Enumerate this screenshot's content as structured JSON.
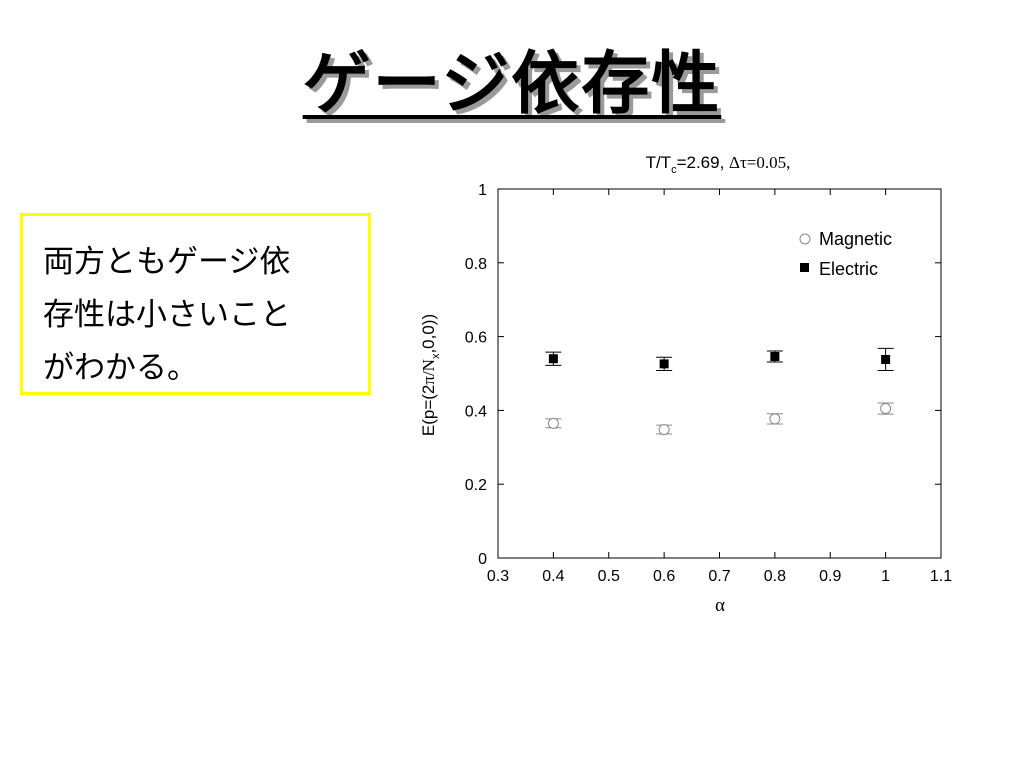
{
  "slide": {
    "title": "ゲージ依存性",
    "note_lines": [
      "両方ともゲージ依",
      "存性は小さいこと",
      "がわかる。"
    ]
  },
  "chart_data": {
    "type": "scatter",
    "title": {
      "main": "T/T",
      "sub": "c",
      "rest": "=2.69, ",
      "symbol": "Δτ=0.05,"
    },
    "xlabel": "α",
    "ylabel": {
      "pre": "E(p=(2",
      "pi": "π",
      "slash": "/N",
      "sub": "x",
      "post": ",0,0))"
    },
    "xlim": [
      0.3,
      1.1
    ],
    "ylim": [
      0,
      1
    ],
    "x_ticks": [
      "0.3",
      "0.4",
      "0.5",
      "0.6",
      "0.7",
      "0.8",
      "0.9",
      "1",
      "1.1"
    ],
    "y_ticks": [
      "0",
      "0.2",
      "0.4",
      "0.6",
      "0.8",
      "1"
    ],
    "legend_position": "top-right",
    "series": [
      {
        "name": "Magnetic",
        "marker": "open-circle",
        "color": "#888888",
        "x": [
          0.4,
          0.6,
          0.8,
          1.0
        ],
        "y": [
          0.365,
          0.348,
          0.377,
          0.405
        ],
        "err": [
          0.012,
          0.012,
          0.014,
          0.015
        ]
      },
      {
        "name": "Electric",
        "marker": "filled-square",
        "color": "#000000",
        "x": [
          0.4,
          0.6,
          0.8,
          1.0
        ],
        "y": [
          0.54,
          0.526,
          0.546,
          0.538
        ],
        "err": [
          0.018,
          0.018,
          0.015,
          0.03
        ]
      }
    ]
  }
}
